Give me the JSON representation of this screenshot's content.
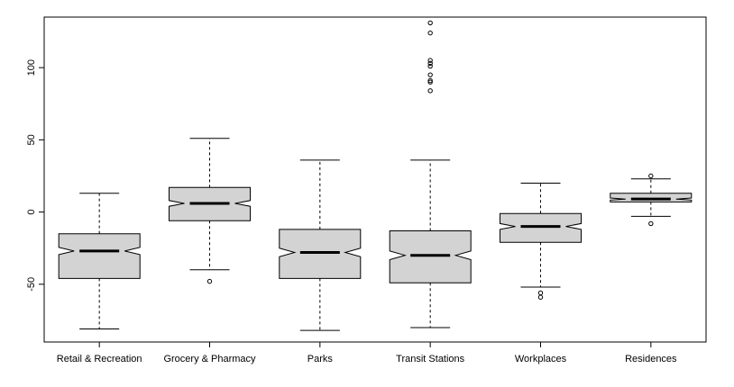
{
  "chart_data": {
    "type": "boxplot",
    "notched": true,
    "title": "",
    "xlabel": "",
    "ylabel": "",
    "categories": [
      "Retail & Recreation",
      "Grocery & Pharmacy",
      "Parks",
      "Transit Stations",
      "Workplaces",
      "Residences"
    ],
    "y_ticks": [
      "-50",
      "0",
      "50",
      "100"
    ],
    "ylim": [
      -90,
      135
    ],
    "box_fill": "#d3d3d3",
    "stroke": "#000000",
    "boxes": [
      {
        "whisker_low": -81,
        "q1": -46,
        "median": -27,
        "q3": -15,
        "whisker_high": 13,
        "notch": [
          -29.5,
          -24.5
        ],
        "outliers": []
      },
      {
        "whisker_low": -40,
        "q1": -6,
        "median": 6,
        "q3": 17,
        "whisker_high": 51,
        "notch": [
          4,
          8
        ],
        "outliers": [
          -48
        ]
      },
      {
        "whisker_low": -82,
        "q1": -46,
        "median": -28,
        "q3": -12,
        "whisker_high": 36,
        "notch": [
          -31,
          -25
        ],
        "outliers": []
      },
      {
        "whisker_low": -80,
        "q1": -49,
        "median": -30,
        "q3": -13,
        "whisker_high": 36,
        "notch": [
          -33,
          -27
        ],
        "outliers": [
          84,
          90,
          91,
          95,
          101,
          103,
          105,
          124,
          131
        ]
      },
      {
        "whisker_low": -52,
        "q1": -21,
        "median": -10,
        "q3": -1,
        "whisker_high": 20,
        "notch": [
          -12,
          -8
        ],
        "outliers": [
          -56,
          -59
        ]
      },
      {
        "whisker_low": -3,
        "q1": 7,
        "median": 9,
        "q3": 13,
        "whisker_high": 23,
        "notch": [
          8.3,
          9.7
        ],
        "outliers": [
          25,
          -8
        ]
      }
    ]
  }
}
